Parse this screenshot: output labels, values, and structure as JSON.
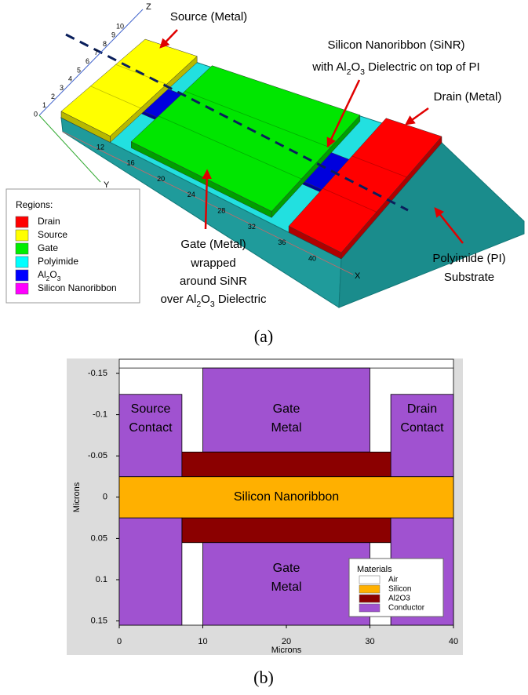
{
  "panel_a": {
    "annotations": {
      "source": "Source (Metal)",
      "sinr_line1": "Silicon Nanoribbon (SiNR)",
      "sinr_line2": [
        "with Al",
        "2",
        "O",
        "3",
        " Dielectric on top of PI"
      ],
      "drain": "Drain (Metal)",
      "gate_line1": "Gate (Metal)",
      "gate_line2": "wrapped",
      "gate_line3": "around SiNR",
      "gate_line4": [
        "over Al",
        "2",
        "O",
        "3",
        " Dielectric"
      ],
      "substrate_line1": "Polyimide (PI)",
      "substrate_line2": "Substrate"
    },
    "legend": {
      "title": "Regions:",
      "items": [
        {
          "label": "Drain",
          "color": "#ff0000"
        },
        {
          "label": "Source",
          "color": "#ffff00"
        },
        {
          "label": "Gate",
          "color": "#00ee00"
        },
        {
          "label": "Polyimide",
          "color": "#00ffff"
        },
        {
          "label": [
            "Al",
            "2",
            "O",
            "3"
          ],
          "color": "#0000ff"
        },
        {
          "label": "Silicon Nanoribbon",
          "color": "#ff00ff"
        }
      ]
    },
    "axes": {
      "z_label": "Z",
      "z_ticks": [
        "0",
        "1",
        "2",
        "3",
        "4",
        "5",
        "6",
        "7",
        "8",
        "9",
        "10"
      ],
      "x_label": "X",
      "x_ticks": [
        "12",
        "16",
        "20",
        "24",
        "28",
        "32",
        "36",
        "40"
      ],
      "y_label": "Y"
    },
    "caption": "(a)"
  },
  "panel_b": {
    "y_axis_label": "Microns",
    "x_axis_label": "Microns",
    "y_ticks": [
      "-0.15",
      "-0.1",
      "-0.05",
      "0",
      "0.05",
      "0.1",
      "0.15"
    ],
    "x_ticks": [
      "0",
      "10",
      "20",
      "30",
      "40"
    ],
    "region_labels": {
      "source": [
        "Source",
        "Contact"
      ],
      "gate_top": [
        "Gate",
        "Metal"
      ],
      "drain": [
        "Drain",
        "Contact"
      ],
      "silicon": "Silicon Nanoribbon",
      "gate_bottom": [
        "Gate",
        "Metal"
      ]
    },
    "legend": {
      "title": "Materials",
      "items": [
        {
          "label": "Air",
          "color": "#ffffff"
        },
        {
          "label": "Silicon",
          "color": "#ffb000"
        },
        {
          "label": "Al2O3",
          "color": "#8b0000"
        },
        {
          "label": "Conductor",
          "color": "#a052d0"
        }
      ]
    },
    "caption": "(b)"
  }
}
